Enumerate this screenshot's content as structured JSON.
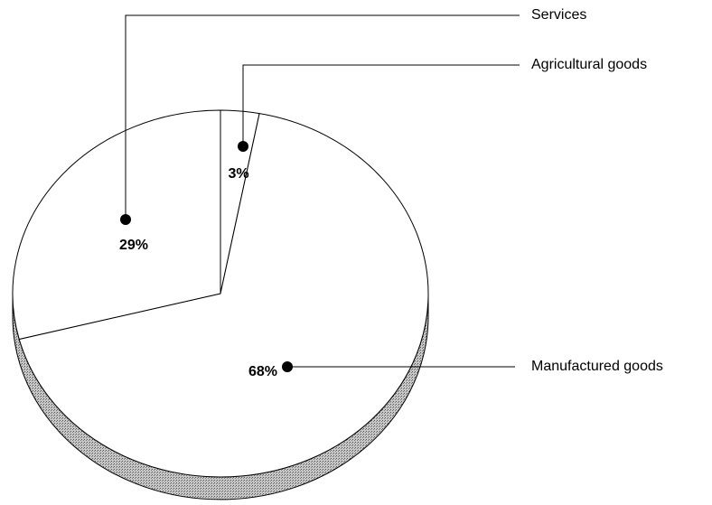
{
  "chart_data": {
    "type": "pie",
    "categories": [
      "Agricultural goods",
      "Manufactured goods",
      "Services"
    ],
    "values": [
      3,
      68,
      29
    ],
    "value_labels": [
      "3%",
      "68%",
      "29%"
    ]
  }
}
